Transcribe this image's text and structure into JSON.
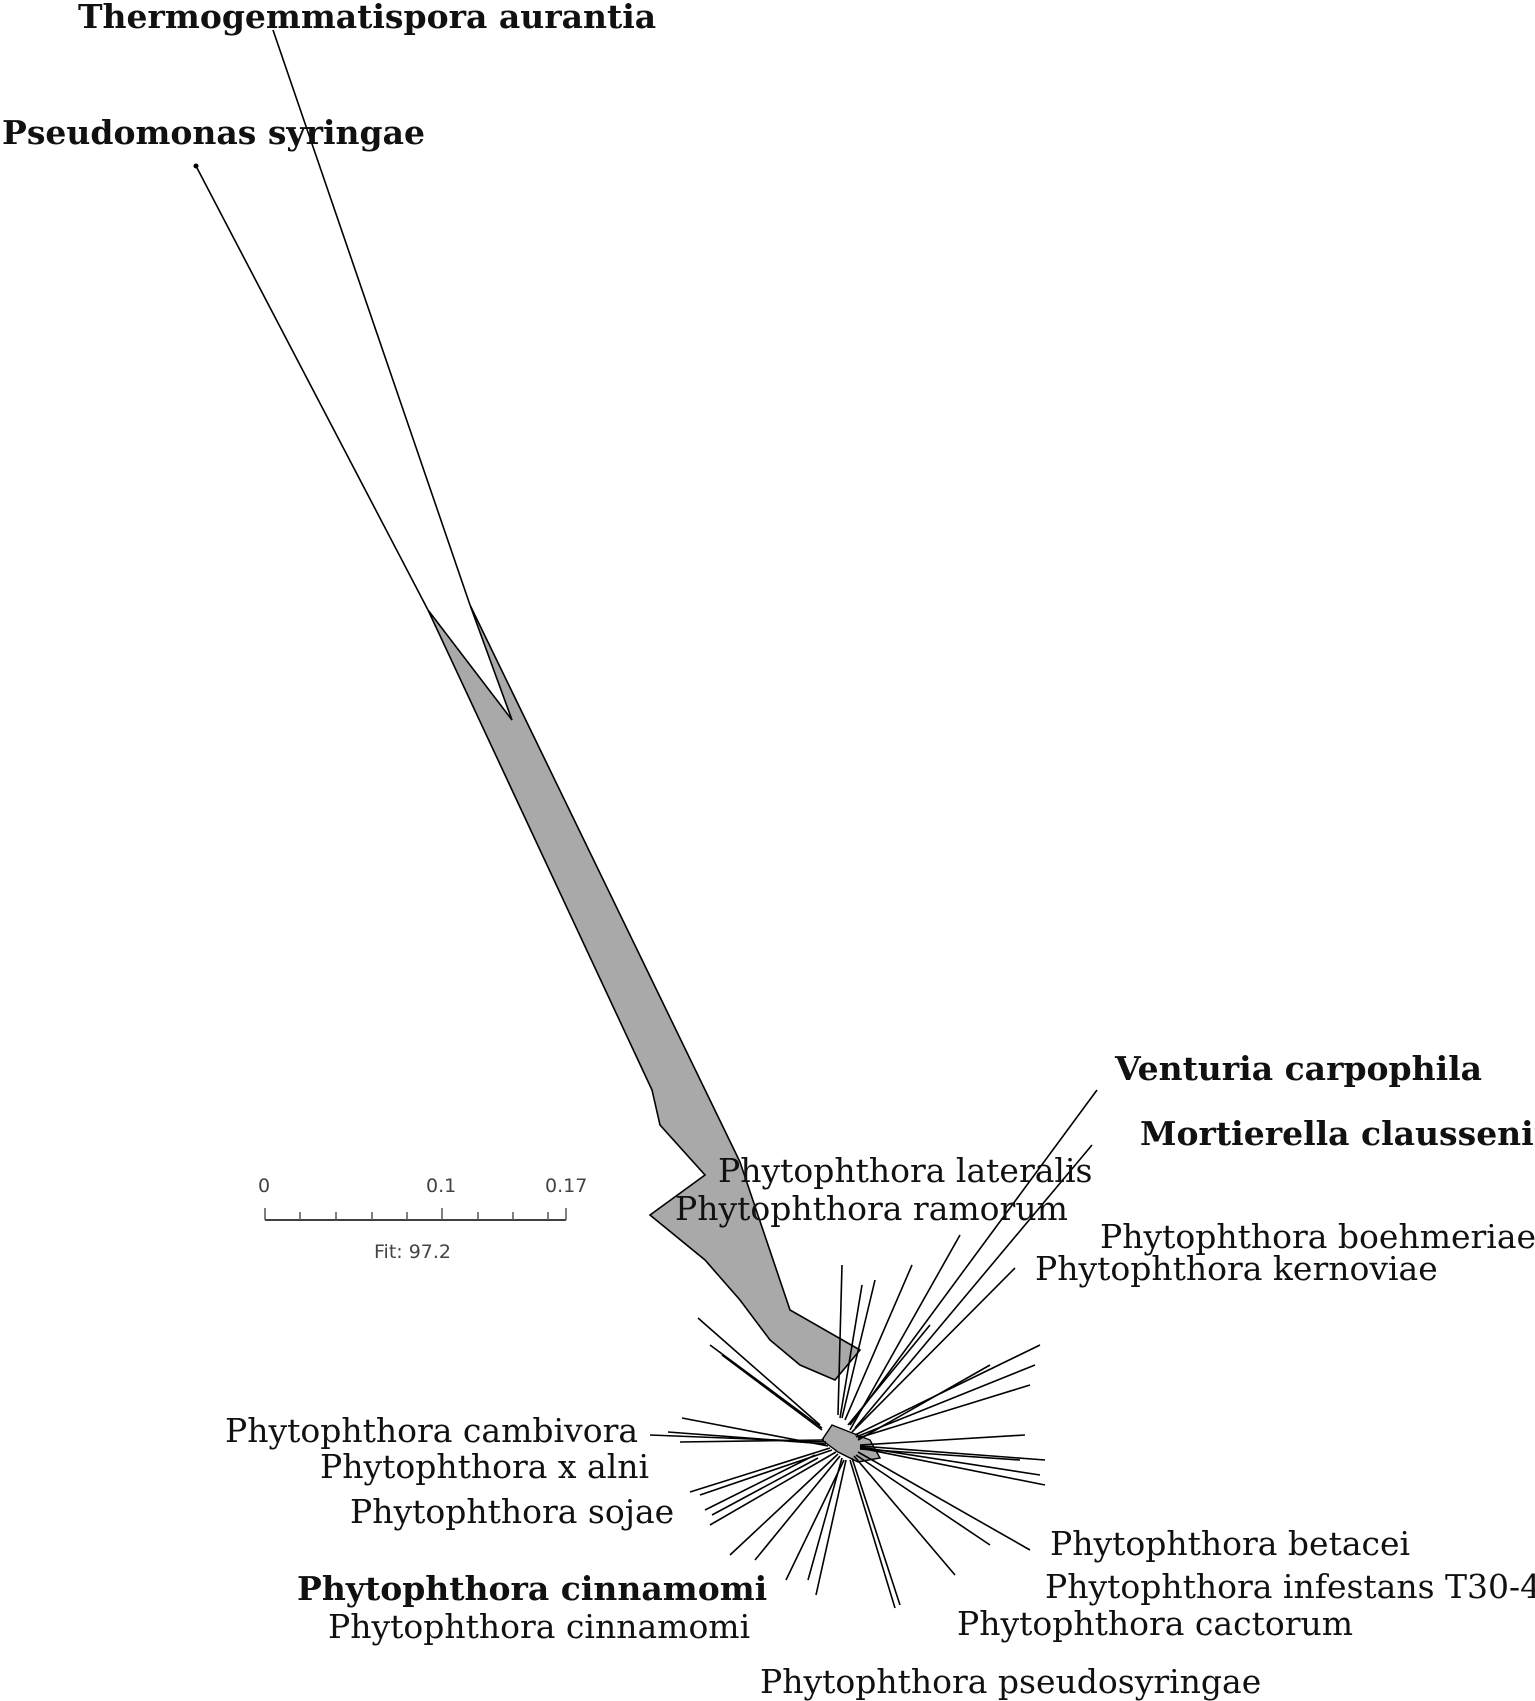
{
  "network": {
    "taxa": [
      {
        "id": "thermogemmatispora",
        "label": "Thermogemmatispora aurantia",
        "bold": true
      },
      {
        "id": "pseudomonas",
        "label": "Pseudomonas syringae",
        "bold": true
      },
      {
        "id": "venturia",
        "label": "Venturia carpophila",
        "bold": true
      },
      {
        "id": "mortierella",
        "label": "Mortierella claussenii",
        "bold": true
      },
      {
        "id": "lateralis",
        "label": "Phytophthora lateralis",
        "bold": false
      },
      {
        "id": "ramorum",
        "label": "Phytophthora ramorum",
        "bold": false
      },
      {
        "id": "boehmeriae",
        "label": "Phytophthora boehmeriae",
        "bold": false
      },
      {
        "id": "kernoviae",
        "label": "Phytophthora kernoviae",
        "bold": false
      },
      {
        "id": "cambivora",
        "label": "Phytophthora cambivora",
        "bold": false
      },
      {
        "id": "xalni",
        "label": "Phytophthora x alni",
        "bold": false
      },
      {
        "id": "sojae",
        "label": "Phytophthora sojae",
        "bold": false
      },
      {
        "id": "cinnamomi-bold",
        "label": "Phytophthora cinnamomi",
        "bold": true
      },
      {
        "id": "cinnamomi",
        "label": "Phytophthora cinnamomi",
        "bold": false
      },
      {
        "id": "betacei",
        "label": "Phytophthora betacei",
        "bold": false
      },
      {
        "id": "infestans",
        "label": "Phytophthora infestans T30-4",
        "bold": false
      },
      {
        "id": "cactorum",
        "label": "Phytophthora cactorum",
        "bold": false
      },
      {
        "id": "pseudosyringae",
        "label": "Phytophthora pseudosyringae",
        "bold": false
      }
    ]
  },
  "scale_bar": {
    "ticks": [
      "0",
      "0.1",
      "0.17"
    ],
    "fit_label": "Fit: 97.2"
  },
  "colors": {
    "split_fill": "#a9a9a9",
    "edge": "#000000"
  }
}
